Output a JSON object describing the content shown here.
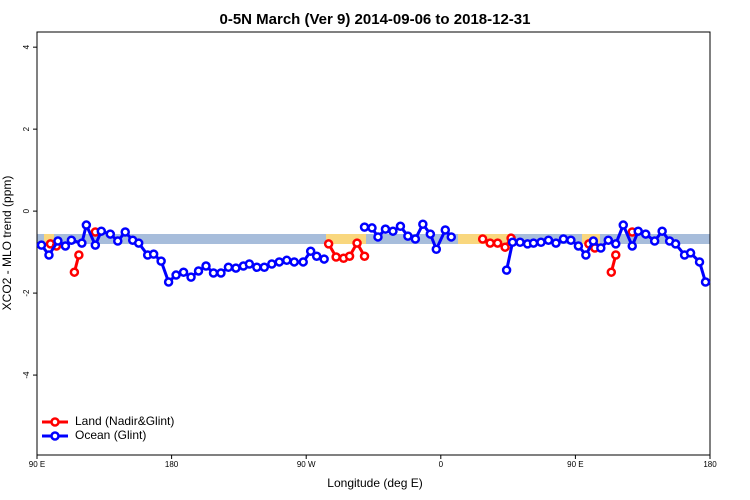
{
  "chart_data": {
    "type": "line",
    "title": "0-5N March (Ver 9)   2014-09-06 to 2018-12-31",
    "x_label": "Longitude (deg E)",
    "y_label": "XCO2 - MLO trend (ppm)",
    "xlim": [
      90,
      540
    ],
    "ylim": [
      -5.95,
      4.37
    ],
    "xticks": [
      {
        "value": 90,
        "label": "90 E"
      },
      {
        "value": 180,
        "label": "180"
      },
      {
        "value": 270,
        "label": "90 W"
      },
      {
        "value": 360,
        "label": "0"
      },
      {
        "value": 450,
        "label": "90 E"
      },
      {
        "value": 540,
        "label": "180"
      }
    ],
    "yticks": [
      -4,
      -2,
      0,
      2,
      4
    ],
    "legend": "bottom-left",
    "series": [
      {
        "name": "Land (Nadir&Glint)",
        "color": "#ff0000",
        "x": [
          99,
          103,
          null,
          115,
          118,
          null,
          129,
          null,
          285,
          290,
          295,
          299,
          304,
          309,
          null,
          388,
          393,
          398,
          403,
          407,
          null,
          459,
          463,
          null,
          474,
          477,
          null,
          488
        ],
        "values": [
          -0.8,
          -0.85,
          null,
          -1.49,
          -1.07,
          null,
          -0.51,
          null,
          -0.8,
          -1.12,
          -1.15,
          -1.1,
          -0.78,
          -1.1,
          null,
          -0.68,
          -0.78,
          -0.78,
          -0.88,
          -0.66,
          null,
          -0.8,
          -0.9,
          null,
          -1.49,
          -1.07,
          null,
          -0.51
        ]
      },
      {
        "name": "Ocean (Glint)",
        "color": "#0000ff",
        "x": [
          93,
          98,
          104,
          109,
          113,
          120,
          123,
          129,
          133,
          139,
          144,
          149,
          154,
          158,
          164,
          168,
          173,
          178,
          183,
          188,
          193,
          198,
          203,
          208,
          213,
          218,
          223,
          228,
          232,
          237,
          242,
          247,
          252,
          257,
          262,
          268,
          273,
          277,
          282,
          null,
          309,
          314,
          318,
          323,
          328,
          333,
          338,
          343,
          348,
          353,
          357,
          363,
          367,
          null,
          404,
          408,
          413,
          418,
          422,
          427,
          432,
          437,
          442,
          447,
          452,
          457,
          462,
          467,
          472,
          477,
          482,
          488,
          492,
          497,
          503,
          508,
          513,
          517,
          523,
          527,
          533,
          537
        ],
        "values": [
          -0.83,
          -1.07,
          -0.73,
          -0.85,
          -0.71,
          -0.78,
          -0.34,
          -0.83,
          -0.49,
          -0.56,
          -0.73,
          -0.51,
          -0.71,
          -0.78,
          -1.07,
          -1.05,
          -1.22,
          -1.73,
          -1.56,
          -1.49,
          -1.61,
          -1.46,
          -1.34,
          -1.51,
          -1.51,
          -1.37,
          -1.39,
          -1.34,
          -1.29,
          -1.37,
          -1.37,
          -1.29,
          -1.24,
          -1.2,
          -1.24,
          -1.24,
          -0.98,
          -1.1,
          -1.17,
          null,
          -0.39,
          -0.41,
          -0.63,
          -0.44,
          -0.49,
          -0.37,
          -0.61,
          -0.68,
          -0.32,
          -0.56,
          -0.93,
          -0.46,
          -0.63,
          null,
          -1.44,
          -0.76,
          -0.76,
          -0.8,
          -0.78,
          -0.76,
          -0.71,
          -0.78,
          -0.68,
          -0.71,
          -0.85,
          -1.07,
          -0.73,
          -0.9,
          -0.71,
          -0.8,
          -0.34,
          -0.85,
          -0.49,
          -0.56,
          -0.73,
          -0.49,
          -0.73,
          -0.8,
          -1.07,
          -1.02,
          -1.24,
          -1.73
        ]
      }
    ]
  }
}
